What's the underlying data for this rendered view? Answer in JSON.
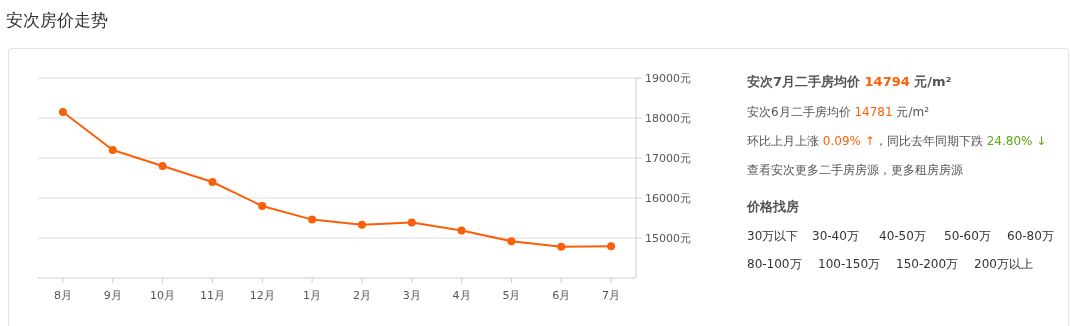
{
  "chart_data": [
    {
      "type": "line",
      "title": "安次房价走势",
      "categories": [
        "8月",
        "9月",
        "10月",
        "11月",
        "12月",
        "1月",
        "2月",
        "3月",
        "4月",
        "5月",
        "6月",
        "7月"
      ],
      "series": [
        {
          "color": "#fa5f0a",
          "values": [
            18150,
            17200,
            16800,
            16400,
            15800,
            15460,
            15330,
            15390,
            15190,
            14920,
            14781,
            14794
          ]
        }
      ],
      "ylim": [
        14000,
        19000
      ],
      "yticks": [
        {
          "value": 15000,
          "label": "15000元"
        },
        {
          "value": 16000,
          "label": "16000元"
        },
        {
          "value": 17000,
          "label": "17000元"
        },
        {
          "value": 18000,
          "label": "18000元"
        },
        {
          "value": 19000,
          "label": "19000元"
        }
      ],
      "grid": "y",
      "marker": "circle",
      "line_style": "solid"
    },
    {
      "type": "other",
      "title": "安次7月二手房均价 14794 元/m²",
      "annotations": [
        "安次6月二手房均价 14781 元/m²",
        "环比上月上涨 0.09% ↑，同比去年同期下跌 24.80% ↓",
        "查看安次更多二手房房源，更多租房房源",
        "价格找房",
        "30万以下",
        "30-40万",
        "40-50万",
        "50-60万",
        "60-80万",
        "80-100万",
        "100-150万",
        "150-200万",
        "200万以上"
      ]
    }
  ]
}
